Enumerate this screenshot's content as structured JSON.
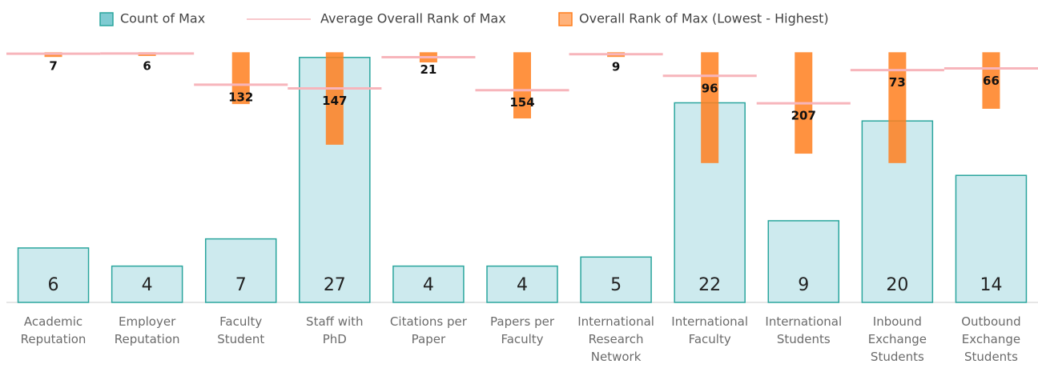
{
  "chart_data": {
    "type": "combo",
    "categories": [
      "Academic\nReputation",
      "Employer\nReputation",
      "Faculty\nStudent",
      "Staff with\nPhD",
      "Citations per\nPaper",
      "Papers per\nFaculty",
      "International\nResearch\nNetwork",
      "International\nFaculty",
      "International\nStudents",
      "Inbound\nExchange\nStudents",
      "Outbound\nExchange\nStudents"
    ],
    "series": [
      {
        "name": "Count of Max",
        "type": "bar",
        "color": "#cdeaee",
        "edge_color": "#2aa59d",
        "values": [
          6,
          4,
          7,
          27,
          4,
          4,
          5,
          22,
          9,
          20,
          14
        ]
      },
      {
        "name": "Average Overall Rank of Max",
        "type": "line",
        "axis": "y2",
        "color": "#f7b5bb",
        "values": [
          7,
          6,
          132,
          147,
          21,
          154,
          9,
          96,
          207,
          73,
          66
        ]
      },
      {
        "name": "Overall Rank of Max (Lowest - Highest)",
        "type": "range",
        "axis": "y2",
        "color": "#ff7f1e",
        "values": [
          [
            1,
            20
          ],
          [
            1,
            16
          ],
          [
            1,
            210
          ],
          [
            1,
            374
          ],
          [
            1,
            42
          ],
          [
            1,
            268
          ],
          [
            1,
            20
          ],
          [
            1,
            448
          ],
          [
            1,
            410
          ],
          [
            1,
            448
          ],
          [
            1,
            229
          ]
        ]
      }
    ],
    "ylim": [
      0,
      27.6
    ],
    "y2lim": [
      1010,
      0
    ],
    "grid": false,
    "legend": "top"
  }
}
